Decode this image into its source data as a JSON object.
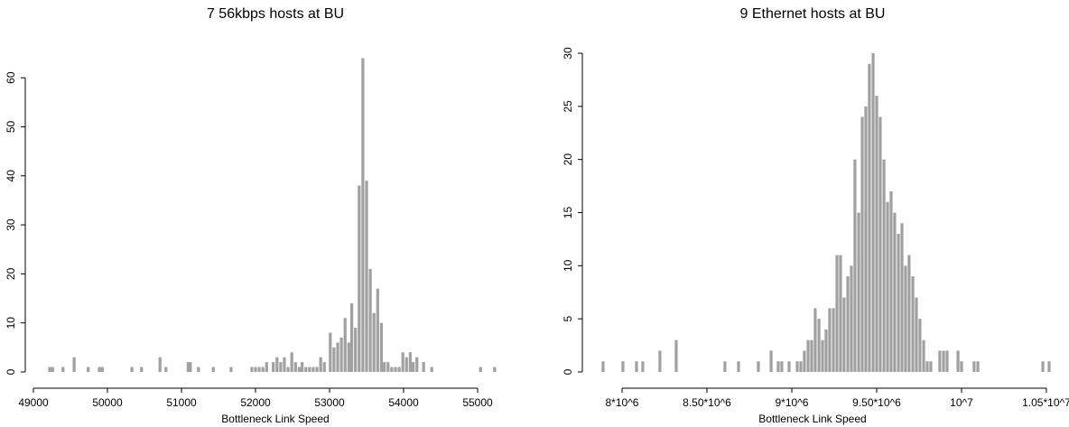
{
  "chart_data": [
    {
      "type": "bar",
      "title": "7   56kbps hosts at BU",
      "x_label": "Bottleneck Link Speed",
      "color": "#a0a0a0",
      "x": [
        49220,
        49260,
        49400,
        49550,
        49740,
        49890,
        49930,
        50330,
        50460,
        50710,
        50790,
        51090,
        51120,
        51230,
        51430,
        51670,
        51950,
        52000,
        52050,
        52100,
        52150,
        52240,
        52290,
        52340,
        52390,
        52440,
        52490,
        52540,
        52590,
        52630,
        52680,
        52730,
        52780,
        52830,
        52880,
        52930,
        53010,
        53060,
        53110,
        53160,
        53210,
        53260,
        53300,
        53350,
        53400,
        53450,
        53500,
        53550,
        53600,
        53650,
        53700,
        53740,
        53790,
        53840,
        53890,
        53940,
        53990,
        54040,
        54090,
        54130,
        54180,
        54270,
        54380,
        55040,
        55230
      ],
      "values": [
        1,
        1,
        1,
        3,
        1,
        1,
        1,
        1,
        1,
        3,
        1,
        2,
        2,
        1,
        1,
        1,
        1,
        1,
        1,
        1,
        2,
        2,
        3,
        2,
        3,
        1,
        4,
        2,
        1,
        2,
        1,
        1,
        1,
        1,
        3,
        2,
        8,
        5,
        6,
        7,
        11,
        6,
        14,
        9,
        38,
        64,
        39,
        21,
        12,
        17,
        10,
        2,
        2,
        1,
        1,
        1,
        4,
        3,
        4,
        2,
        3,
        2,
        1,
        1,
        1
      ],
      "xlim": [
        48900,
        55400
      ],
      "xticks": [
        49000,
        50000,
        51000,
        52000,
        53000,
        54000,
        55000
      ],
      "ylim": [
        0,
        65
      ],
      "yticks": [
        0,
        10,
        20,
        30,
        40,
        50,
        60
      ]
    },
    {
      "type": "bar",
      "title": "9   Ethernet hosts at BU",
      "x_label": "Bottleneck Link Speed",
      "color": "#a0a0a0",
      "x": [
        7888000,
        8005000,
        8085000,
        8122000,
        8223000,
        8319000,
        8606000,
        8686000,
        8803000,
        8878000,
        8920000,
        8941000,
        8984000,
        9032000,
        9053000,
        9074000,
        9096000,
        9117000,
        9138000,
        9160000,
        9181000,
        9202000,
        9223000,
        9245000,
        9266000,
        9287000,
        9308000,
        9330000,
        9351000,
        9372000,
        9394000,
        9415000,
        9436000,
        9457000,
        9479000,
        9500000,
        9521000,
        9543000,
        9564000,
        9585000,
        9606000,
        9628000,
        9649000,
        9670000,
        9691000,
        9713000,
        9734000,
        9755000,
        9777000,
        9798000,
        9819000,
        9872000,
        9894000,
        9915000,
        9979000,
        10000000,
        10074000,
        10096000,
        10479000,
        10516000
      ],
      "values": [
        1,
        1,
        1,
        1,
        2,
        3,
        1,
        1,
        1,
        2,
        1,
        1,
        1,
        1,
        1,
        2,
        3,
        3,
        6,
        5,
        3,
        4,
        6,
        6,
        11,
        11,
        7,
        9,
        10,
        20,
        15,
        24,
        25,
        29,
        30,
        26,
        24,
        20,
        16,
        17,
        15,
        13,
        14,
        10,
        11,
        9,
        7,
        5,
        3,
        1,
        1,
        2,
        2,
        2,
        2,
        1,
        1,
        1,
        1,
        1
      ],
      "xlim": [
        7850000,
        10540000
      ],
      "xticks": [
        {
          "value": 8000000,
          "label": "8*10^6"
        },
        {
          "value": 8500000,
          "label": "8.50*10^6"
        },
        {
          "value": 9000000,
          "label": "9*10^6"
        },
        {
          "value": 9500000,
          "label": "9.50*10^6"
        },
        {
          "value": 10000000,
          "label": "10^7"
        },
        {
          "value": 10500000,
          "label": "1.05*10^7"
        }
      ],
      "ylim": [
        0,
        30
      ],
      "yticks": [
        0,
        5,
        10,
        15,
        20,
        25,
        30
      ]
    }
  ]
}
